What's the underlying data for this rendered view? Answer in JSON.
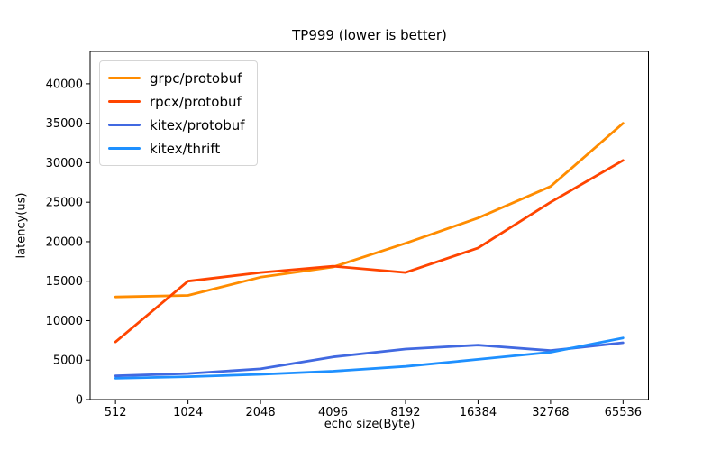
{
  "title": "TP999 (lower is better)",
  "chart_data": {
    "type": "line",
    "title": "TP999 (lower is better)",
    "xlabel": "echo size(Byte)",
    "ylabel": "latency(us)",
    "categories": [
      "512",
      "1024",
      "2048",
      "4096",
      "8192",
      "16384",
      "32768",
      "65536"
    ],
    "series": [
      {
        "name": "grpc/protobuf",
        "color": "#ff8c00",
        "values": [
          13000,
          13200,
          15500,
          16800,
          19800,
          23000,
          27000,
          35000
        ]
      },
      {
        "name": "rpcx/protobuf",
        "color": "#ff4500",
        "values": [
          7300,
          15000,
          16100,
          16900,
          16100,
          19200,
          25000,
          30300
        ]
      },
      {
        "name": "kitex/protobuf",
        "color": "#4169e1",
        "values": [
          3000,
          3300,
          3900,
          5400,
          6400,
          6900,
          6200,
          7200
        ]
      },
      {
        "name": "kitex/thrift",
        "color": "#1e90ff",
        "values": [
          2700,
          2900,
          3200,
          3600,
          4200,
          5100,
          6000,
          7800
        ]
      }
    ],
    "yticks": [
      0,
      5000,
      10000,
      15000,
      20000,
      25000,
      30000,
      35000,
      40000
    ],
    "ylim": [
      0,
      44100
    ],
    "grid": false,
    "legend_position": "upper-left",
    "axis_color": "#000000",
    "tick_font_px": 13,
    "line_width": 2.8
  }
}
